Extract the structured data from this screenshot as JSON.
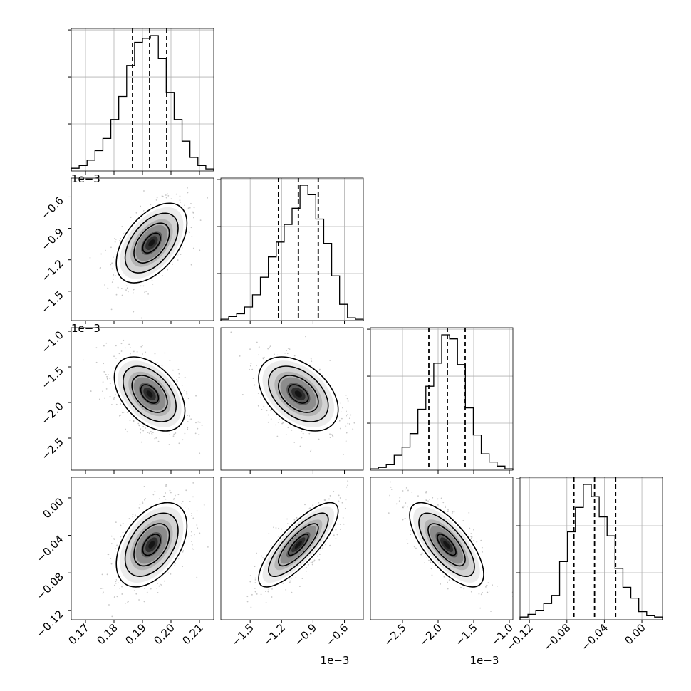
{
  "chart_data": {
    "type": "corner",
    "title": "",
    "parameters": [
      {
        "label": "",
        "range": [
          0.165,
          0.215
        ],
        "ticks": [
          0.17,
          0.18,
          0.19,
          0.2,
          0.21
        ],
        "tick_labels": [
          "0.17",
          "0.18",
          "0.19",
          "0.20",
          "0.21"
        ],
        "offset": "",
        "quantiles": [
          0.1865,
          0.1925,
          0.1985
        ]
      },
      {
        "label": "",
        "range": [
          -1.78,
          -0.42
        ],
        "ticks": [
          -1.5,
          -1.2,
          -0.9,
          -0.6
        ],
        "tick_labels": [
          "−1.5",
          "−1.2",
          "−0.9",
          "−0.6"
        ],
        "offset": "1e−3",
        "quantiles": [
          -1.23,
          -1.04,
          -0.85
        ]
      },
      {
        "label": "",
        "range": [
          -2.95,
          -0.95
        ],
        "ticks": [
          -2.5,
          -2.0,
          -1.5,
          -1.0
        ],
        "tick_labels": [
          "−2.5",
          "−2.0",
          "−1.5",
          "−1.0"
        ],
        "offset": "1e−3",
        "quantiles": [
          -2.13,
          -1.87,
          -1.62
        ]
      },
      {
        "label": "",
        "range": [
          -0.13,
          0.022
        ],
        "ticks": [
          -0.12,
          -0.08,
          -0.04,
          0.0
        ],
        "tick_labels": [
          "−0.12",
          "−0.08",
          "−0.04",
          "0.00"
        ],
        "offset": "",
        "quantiles": [
          -0.0725,
          -0.0505,
          -0.028
        ]
      }
    ],
    "histograms": [
      [
        0.02,
        0.04,
        0.08,
        0.15,
        0.24,
        0.38,
        0.55,
        0.78,
        0.95,
        0.98,
        1.0,
        0.83,
        0.58,
        0.38,
        0.22,
        0.1,
        0.04,
        0.015
      ],
      [
        0.01,
        0.03,
        0.05,
        0.1,
        0.19,
        0.32,
        0.47,
        0.58,
        0.71,
        0.83,
        1.0,
        0.93,
        0.75,
        0.57,
        0.33,
        0.12,
        0.02,
        0.01
      ],
      [
        0.01,
        0.02,
        0.04,
        0.11,
        0.17,
        0.27,
        0.45,
        0.62,
        0.79,
        1.0,
        0.97,
        0.78,
        0.46,
        0.26,
        0.12,
        0.06,
        0.03,
        0.01
      ],
      [
        0.02,
        0.04,
        0.07,
        0.12,
        0.18,
        0.43,
        0.65,
        0.83,
        1.0,
        0.91,
        0.76,
        0.62,
        0.38,
        0.24,
        0.16,
        0.06,
        0.03,
        0.02
      ]
    ],
    "pairs": [
      {
        "col": 0,
        "row": 1,
        "center": [
          0.1932,
          -1.04
        ],
        "sigma": [
          0.0062,
          0.19
        ],
        "rho": 0.5
      },
      {
        "col": 0,
        "row": 2,
        "center": [
          0.1925,
          -1.88
        ],
        "sigma": [
          0.0062,
          0.26
        ],
        "rho": -0.45
      },
      {
        "col": 1,
        "row": 2,
        "center": [
          -1.04,
          -1.88
        ],
        "sigma": [
          0.19,
          0.26
        ],
        "rho": -0.42
      },
      {
        "col": 0,
        "row": 3,
        "center": [
          0.1932,
          -0.05
        ],
        "sigma": [
          0.0062,
          0.0225
        ],
        "rho": 0.45
      },
      {
        "col": 1,
        "row": 3,
        "center": [
          -1.04,
          -0.05
        ],
        "sigma": [
          0.19,
          0.0225
        ],
        "rho": 0.8
      },
      {
        "col": 2,
        "row": 3,
        "center": [
          -1.88,
          -0.05
        ],
        "sigma": [
          0.26,
          0.0225
        ],
        "rho": -0.7
      }
    ],
    "contour_levels_sigma": [
      0.5,
      1.0,
      1.5,
      2.0
    ],
    "grid": true
  }
}
